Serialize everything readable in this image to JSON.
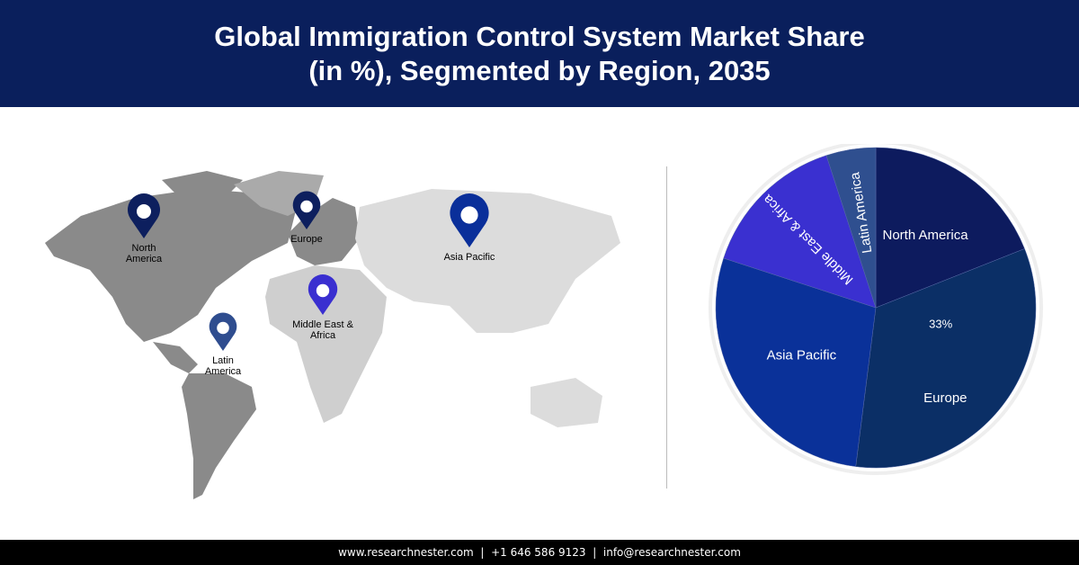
{
  "title_line1": "Global Immigration Control System Market Share",
  "title_line2": "(in %), Segmented by Region, 2035",
  "footer": {
    "website": "www.researchnester.com",
    "phone": "+1 646 586 9123",
    "email": "info@researchnester.com"
  },
  "map": {
    "pins": [
      {
        "line1": "North",
        "line2": "America",
        "color": "#0d1f5e"
      },
      {
        "line1": "Europe",
        "line2": "",
        "color": "#0d1f5e"
      },
      {
        "line1": "Asia Pacific",
        "line2": "",
        "color": "#0a2f9a"
      },
      {
        "line1": "Middle East &",
        "line2": "Africa",
        "color": "#3a2fd0"
      },
      {
        "line1": "Latin",
        "line2": "America",
        "color": "#2f4d8f"
      }
    ]
  },
  "chart_data": {
    "type": "pie",
    "title": "Global Immigration Control System Market Share (in %), Segmented by Region, 2035",
    "start": "12 o'clock, clockwise",
    "slices": [
      {
        "label": "North America",
        "value": 19,
        "color": "#0d1b5e"
      },
      {
        "label": "Europe",
        "value": 33,
        "value_label": "33%",
        "color": "#0b2f66"
      },
      {
        "label": "Asia Pacific",
        "value": 28,
        "color": "#0a3199"
      },
      {
        "label": "Middle East & Africa",
        "value": 15,
        "color": "#3a30d0"
      },
      {
        "label": "Latin America",
        "value": 5,
        "color": "#2f4f8f"
      }
    ]
  }
}
